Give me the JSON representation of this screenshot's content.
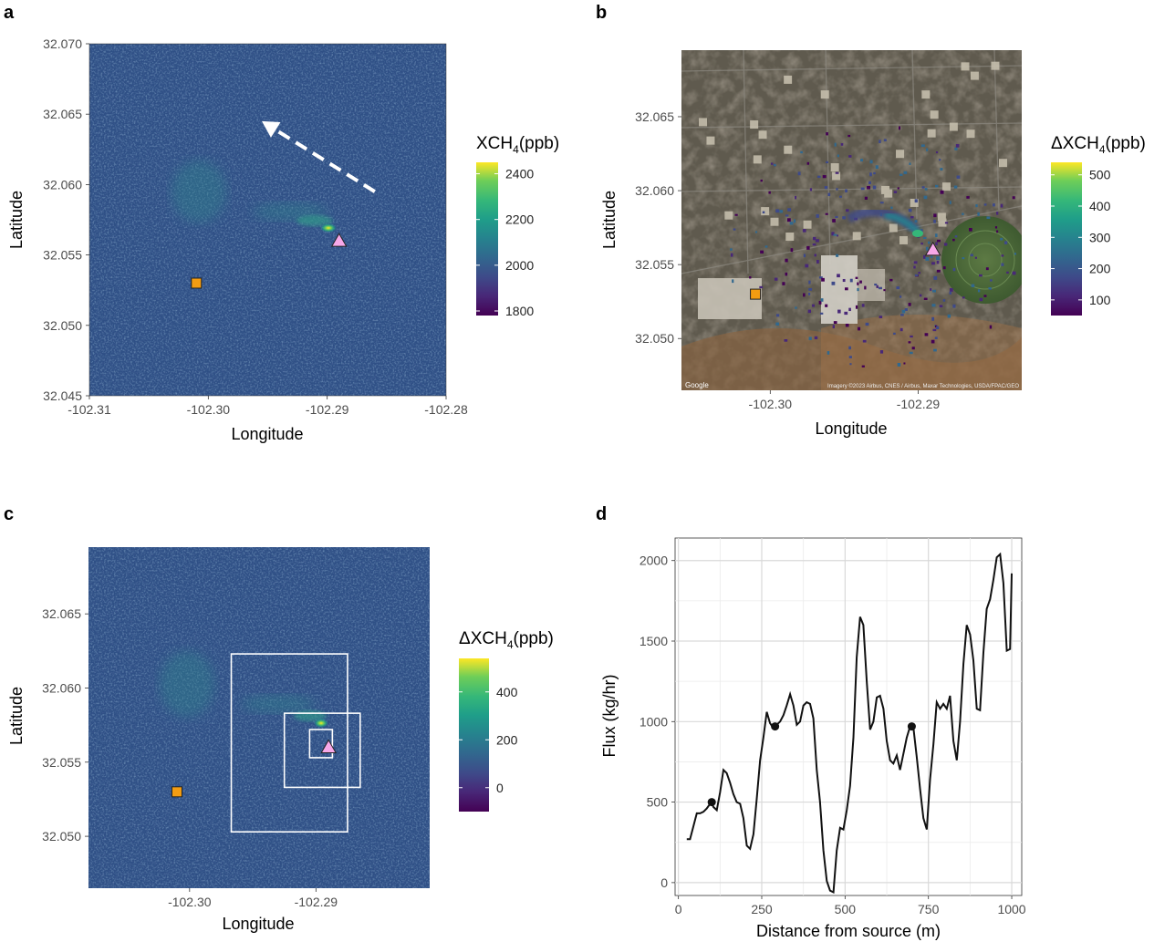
{
  "panels": {
    "a": {
      "letter": "a",
      "xlabel": "Longitude",
      "ylabel": "Latitude",
      "x_ticks": [
        "-102.31",
        "-102.30",
        "-102.29",
        "-102.28"
      ],
      "y_ticks": [
        "32.045",
        "32.050",
        "32.055",
        "32.060",
        "32.065",
        "32.070"
      ],
      "colorbar": {
        "title_pre": "XCH",
        "title_sub": "4",
        "title_post": "(ppb)",
        "ticks": [
          "2400",
          "2200",
          "2000",
          "1800"
        ]
      }
    },
    "b": {
      "letter": "b",
      "xlabel": "Longitude",
      "ylabel": "Latitude",
      "x_ticks": [
        "-102.30",
        "-102.29"
      ],
      "y_ticks": [
        "32.050",
        "32.055",
        "32.060",
        "32.065"
      ],
      "colorbar": {
        "title_pre": "ΔXCH",
        "title_sub": "4",
        "title_post": "(ppb)",
        "ticks": [
          "500",
          "400",
          "300",
          "200",
          "100"
        ]
      },
      "map_logo": "Google",
      "map_credit": "Imagery ©2023 Airbus, CNES / Airbus, Maxar Technologies, USDA/FPAC/GEO"
    },
    "c": {
      "letter": "c",
      "xlabel": "Longitude",
      "ylabel": "Latitude",
      "x_ticks": [
        "-102.30",
        "-102.29"
      ],
      "y_ticks": [
        "32.050",
        "32.055",
        "32.060",
        "32.065"
      ],
      "colorbar": {
        "title_pre": "ΔXCH",
        "title_sub": "4",
        "title_post": "(ppb)",
        "ticks": [
          "400",
          "200",
          "0"
        ]
      }
    },
    "d": {
      "letter": "d",
      "xlabel": "Distance from source (m)",
      "ylabel": "Flux (kg/hr)",
      "x_ticks": [
        "0",
        "250",
        "500",
        "750",
        "1000"
      ],
      "y_ticks": [
        "2000",
        "1500",
        "1000",
        "500",
        "0"
      ]
    }
  },
  "colors": {
    "viridis_low": "#440154",
    "viridis_mid": "#21908c",
    "viridis_high": "#fde725",
    "background_field": "#2c4a82",
    "source_marker": "#f7a8e8",
    "square_marker": "#f39c12"
  },
  "chart_data": [
    {
      "type": "heatmap",
      "panel": "a",
      "variable": "XCH4 (ppb)",
      "xlim": [
        -102.31,
        -102.28
      ],
      "ylim": [
        32.045,
        32.07
      ],
      "color_range": [
        1780,
        2450
      ],
      "source": {
        "lon": -102.289,
        "lat": 32.056
      },
      "square": {
        "lon": -102.301,
        "lat": 32.053
      },
      "wind_arrow": {
        "from": [
          -102.286,
          32.0595
        ],
        "to": [
          -102.2955,
          32.0645
        ]
      }
    },
    {
      "type": "heatmap",
      "panel": "b",
      "variable": "ΔXCH4 (ppb)",
      "xlim": [
        -102.306,
        -102.283
      ],
      "ylim": [
        32.0465,
        32.0695
      ],
      "color_range": [
        50,
        540
      ],
      "source": {
        "lon": -102.289,
        "lat": 32.056
      },
      "square": {
        "lon": -102.301,
        "lat": 32.053
      }
    },
    {
      "type": "heatmap",
      "panel": "c",
      "variable": "ΔXCH4 (ppb)",
      "xlim": [
        -102.308,
        -102.281
      ],
      "ylim": [
        32.0465,
        32.0695
      ],
      "color_range": [
        -100,
        540
      ],
      "source": {
        "lon": -102.289,
        "lat": 32.056
      },
      "square": {
        "lon": -102.301,
        "lat": 32.053
      },
      "boxes": [
        {
          "lon": [
            -102.2905,
            -102.2887
          ],
          "lat": [
            32.0553,
            32.0572
          ]
        },
        {
          "lon": [
            -102.2925,
            -102.2865
          ],
          "lat": [
            32.0533,
            32.0583
          ]
        },
        {
          "lon": [
            -102.2967,
            -102.2875
          ],
          "lat": [
            32.0503,
            32.0623
          ]
        }
      ]
    },
    {
      "type": "line",
      "panel": "d",
      "xlim": [
        -10,
        1030
      ],
      "ylim": [
        -80,
        2140
      ],
      "x": [
        25,
        35,
        45,
        55,
        65,
        75,
        85,
        95,
        100,
        105,
        115,
        125,
        135,
        145,
        155,
        165,
        175,
        185,
        195,
        205,
        215,
        225,
        235,
        245,
        255,
        265,
        275,
        285,
        290,
        295,
        305,
        315,
        325,
        335,
        345,
        355,
        365,
        375,
        385,
        395,
        405,
        415,
        425,
        435,
        445,
        455,
        465,
        475,
        485,
        495,
        505,
        515,
        525,
        535,
        545,
        555,
        565,
        575,
        585,
        595,
        605,
        615,
        625,
        635,
        645,
        655,
        665,
        675,
        685,
        695,
        700,
        705,
        715,
        725,
        735,
        745,
        755,
        765,
        775,
        785,
        795,
        805,
        815,
        825,
        835,
        845,
        855,
        865,
        875,
        885,
        895,
        905,
        915,
        925,
        935,
        945,
        955,
        965,
        975,
        985,
        995,
        1000
      ],
      "y": [
        270,
        270,
        350,
        430,
        430,
        440,
        460,
        490,
        500,
        470,
        450,
        560,
        700,
        680,
        620,
        550,
        500,
        490,
        400,
        230,
        210,
        300,
        520,
        760,
        900,
        1060,
        990,
        960,
        970,
        980,
        1000,
        1040,
        1100,
        1170,
        1100,
        980,
        1000,
        1100,
        1120,
        1110,
        1020,
        700,
        500,
        200,
        10,
        -50,
        -60,
        200,
        340,
        330,
        450,
        600,
        900,
        1400,
        1650,
        1600,
        1250,
        950,
        1000,
        1150,
        1160,
        1080,
        880,
        760,
        740,
        790,
        700,
        800,
        900,
        970,
        970,
        960,
        780,
        580,
        400,
        330,
        640,
        860,
        1120,
        1080,
        1110,
        1080,
        1160,
        880,
        760,
        1000,
        1360,
        1600,
        1540,
        1380,
        1080,
        1070,
        1430,
        1700,
        1760,
        1880,
        2020,
        2040,
        1860,
        1440,
        1450,
        1920
      ],
      "markers": [
        {
          "x": 100,
          "y": 500
        },
        {
          "x": 290,
          "y": 970
        },
        {
          "x": 700,
          "y": 970
        }
      ]
    }
  ]
}
